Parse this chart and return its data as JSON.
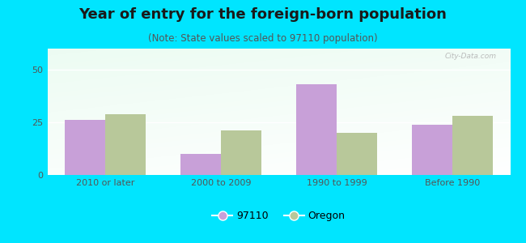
{
  "title": "Year of entry for the foreign-born population",
  "subtitle": "(Note: State values scaled to 97110 population)",
  "categories": [
    "2010 or later",
    "2000 to 2009",
    "1990 to 1999",
    "Before 1990"
  ],
  "values_97110": [
    26,
    10,
    43,
    24
  ],
  "values_oregon": [
    29,
    21,
    20,
    28
  ],
  "color_97110": "#c8a0d8",
  "color_oregon": "#b8c89a",
  "ylim": [
    0,
    60
  ],
  "yticks": [
    0,
    25,
    50
  ],
  "background_outer": "#00e5ff",
  "legend_label_97110": "97110",
  "legend_label_oregon": "Oregon",
  "bar_width": 0.35,
  "title_fontsize": 13,
  "subtitle_fontsize": 8.5,
  "tick_fontsize": 8,
  "legend_fontsize": 9,
  "grid_color": "#e0e0e0",
  "watermark": "City-Data.com"
}
